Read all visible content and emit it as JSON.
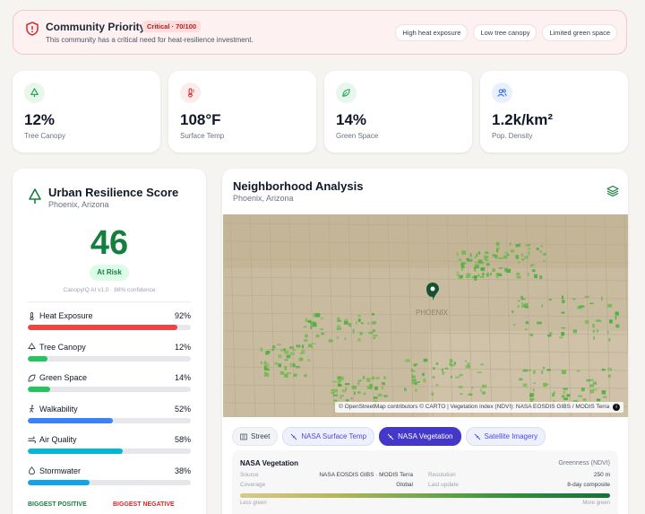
{
  "priority": {
    "title": "Community Priority",
    "badge": "Critical · 70/100",
    "subtitle": "This community has a critical need for heat-resilience investment.",
    "chips": [
      "High heat exposure",
      "Low tree canopy",
      "Limited green space"
    ]
  },
  "stats": [
    {
      "value": "12%",
      "label": "Tree Canopy",
      "icon": "tree-icon",
      "color": "#16a34a"
    },
    {
      "value": "108°F",
      "label": "Surface Temp",
      "icon": "thermometer-icon",
      "color": "#dc2626"
    },
    {
      "value": "14%",
      "label": "Green Space",
      "icon": "leaf-icon",
      "color": "#16a34a"
    },
    {
      "value": "1.2k/km²",
      "label": "Pop. Density",
      "icon": "users-icon",
      "color": "#2563eb"
    }
  ],
  "score": {
    "title": "Urban Resilience Score",
    "location": "Phoenix, Arizona",
    "value": "46",
    "status": "At Risk",
    "confidence": "CanopyIQ AI v1.0 · 88% confidence",
    "metrics": [
      {
        "name": "Heat Exposure",
        "value": "92%",
        "level": 0.92,
        "color": "#ef4444",
        "icon": "thermometer-icon"
      },
      {
        "name": "Tree Canopy",
        "value": "12%",
        "level": 0.12,
        "color": "#22c55e",
        "icon": "tree-icon"
      },
      {
        "name": "Green Space",
        "value": "14%",
        "level": 0.14,
        "color": "#22c55e",
        "icon": "leaf-icon"
      },
      {
        "name": "Walkability",
        "value": "52%",
        "level": 0.52,
        "color": "#3b82f6",
        "icon": "walk-icon"
      },
      {
        "name": "Air Quality",
        "value": "58%",
        "level": 0.58,
        "color": "#06b6d4",
        "icon": "wind-icon"
      },
      {
        "name": "Stormwater",
        "value": "38%",
        "level": 0.38,
        "color": "#0ea5e9",
        "icon": "droplet-icon"
      }
    ],
    "biggest_positive": "BIGGEST POSITIVE",
    "biggest_negative": "BIGGEST NEGATIVE"
  },
  "neighborhood": {
    "title": "Neighborhood Analysis",
    "location": "Phoenix, Arizona",
    "map_city_label": "PHOENIX",
    "attribution": "© OpenStreetMap contributors © CARTO | Vegetation index (NDVI): NASA EOSDIS GIBS / MODIS Terra",
    "tabs": [
      {
        "label": "Street",
        "state": "default",
        "icon": "map-icon"
      },
      {
        "label": "NASA Surface Temp",
        "state": "nasa",
        "icon": "satellite-icon"
      },
      {
        "label": "NASA Vegetation",
        "state": "active",
        "icon": "satellite-icon"
      },
      {
        "label": "Satellite Imagery",
        "state": "nasa",
        "icon": "satellite-icon"
      }
    ],
    "legend": {
      "title": "NASA Vegetation",
      "unit": "Greenness (NDVI)",
      "source_label": "Source",
      "source_value": "NASA EOSDIS GIBS · MODIS Terra",
      "coverage_label": "Coverage",
      "coverage_value": "Global",
      "resolution_label": "Resolution",
      "resolution_value": "250 m",
      "update_label": "Last update",
      "update_value": "8-day composite",
      "low": "Less green",
      "high": "More green"
    }
  }
}
